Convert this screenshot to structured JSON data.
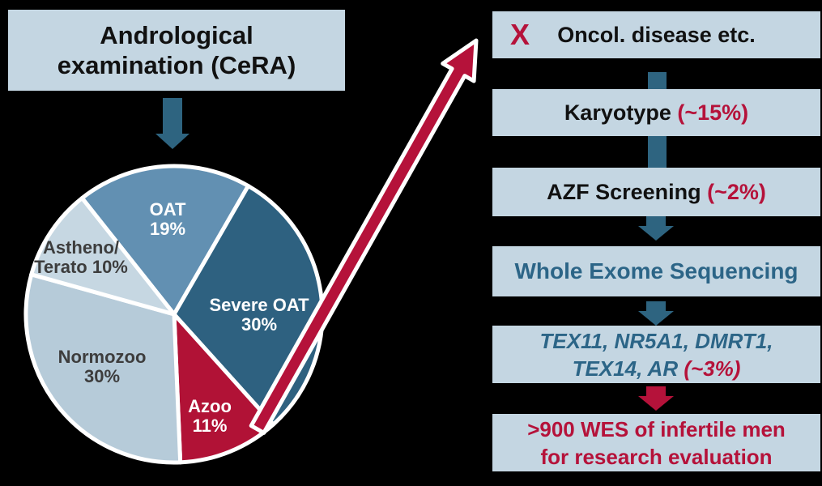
{
  "title_box": {
    "lines": [
      "Andrological",
      "examination (CeRA)"
    ]
  },
  "chart_data": {
    "type": "pie",
    "title": "Andrological examination (CeRA)",
    "start_angle_deg": -38.4,
    "legend_position": "none",
    "labels_on_slices": true,
    "slices": [
      {
        "label": "OAT",
        "value": 19,
        "color": "#6290b2",
        "text_color": "#ffffff"
      },
      {
        "label": "Severe OAT",
        "value": 30,
        "color": "#2e6180",
        "text_color": "#ffffff"
      },
      {
        "label": "Azoo",
        "value": 11,
        "color": "#b11236",
        "text_color": "#ffffff"
      },
      {
        "label": "Normozoo",
        "value": 30,
        "color": "#b6cbd9",
        "text_color": "#3d3d3d"
      },
      {
        "label": "Astheno/Terato",
        "value": 10,
        "color": "#c6d7e2",
        "text_color": "#3d3d3d"
      }
    ]
  },
  "flow": {
    "box1": {
      "x_mark": "X",
      "label": "Oncol. disease etc."
    },
    "box2": {
      "label": "Karyotype ",
      "highlight": "(~15%)"
    },
    "box3": {
      "label": "AZF Screening ",
      "highlight": "(~2%)"
    },
    "box4": {
      "label": "Whole Exome Sequencing"
    },
    "box5": {
      "line1": "TEX11, NR5A1, DMRT1,",
      "line2": "TEX14, AR ",
      "highlight": "(~3%)"
    },
    "box6": {
      "lines": [
        ">900 WES of infertile men",
        "for research evaluation"
      ]
    }
  },
  "colors": {
    "background": "#000000",
    "box_background": "#c4d6e2",
    "teal_accent": "#2e6480",
    "teal_text": "#2c6587",
    "crimson_accent": "#b5123a",
    "black_text": "#111111",
    "pie_outline": "#ffffff"
  }
}
